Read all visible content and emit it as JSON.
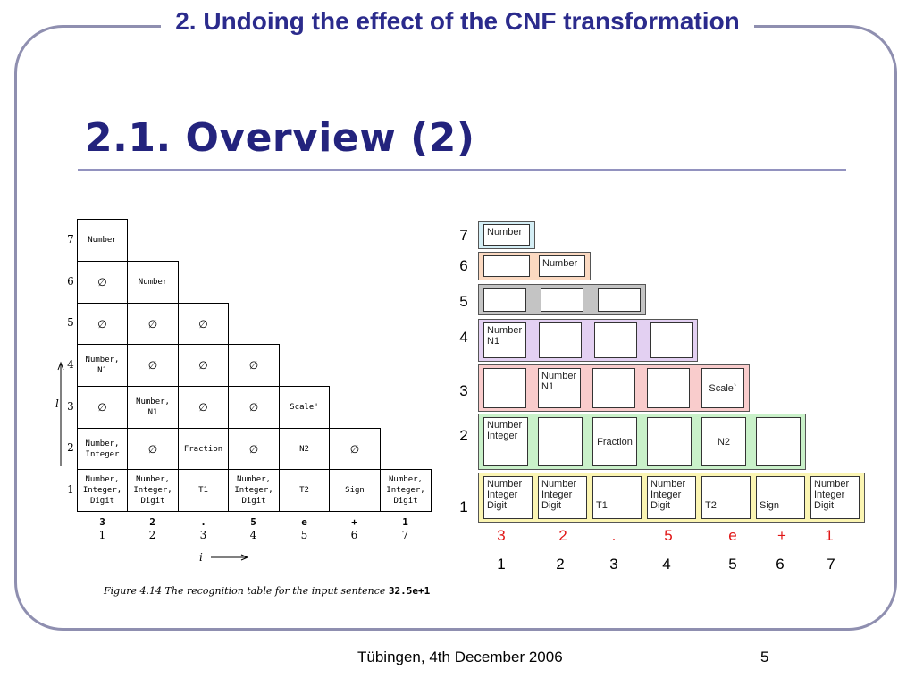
{
  "slide": {
    "title": "2. Undoing the effect of the CNF transformation",
    "heading": "2.1. Overview (2)",
    "footer": "Tübingen, 4th December 2006",
    "page_number": "5"
  },
  "table": {
    "row_labels": [
      "7",
      "6",
      "5",
      "4",
      "3",
      "2",
      "1"
    ],
    "rows": [
      [
        "Number"
      ],
      [
        "∅",
        "Number"
      ],
      [
        "∅",
        "∅",
        "∅"
      ],
      [
        "Number,\nN1",
        "∅",
        "∅",
        "∅"
      ],
      [
        "∅",
        "Number,\nN1",
        "∅",
        "∅",
        "Scale'"
      ],
      [
        "Number,\nInteger",
        "∅",
        "Fraction",
        "∅",
        "N2",
        "∅"
      ],
      [
        "Number,\nInteger,\nDigit",
        "Number,\nInteger,\nDigit",
        "T1",
        "Number,\nInteger,\nDigit",
        "T2",
        "Sign",
        "Number,\nInteger,\nDigit"
      ]
    ],
    "input_chars": [
      "3",
      "2",
      ".",
      "5",
      "e",
      "+",
      "1"
    ],
    "column_indices": [
      "1",
      "2",
      "3",
      "4",
      "5",
      "6",
      "7"
    ],
    "axis_i": "i",
    "axis_l": "l",
    "caption_text": "Figure 4.14  The recognition table for the input sentence ",
    "caption_code": "32.5e+1"
  },
  "diagram": {
    "row_labels": [
      "7",
      "6",
      "5",
      "4",
      "3",
      "2",
      "1"
    ],
    "band_colors": [
      "#d4eef5",
      "#fbd9c1",
      "#c4c4c4",
      "#e3d0f2",
      "#f9cccc",
      "#c9f1c9",
      "#fbf5b2"
    ],
    "rows": [
      [
        [
          "Number"
        ]
      ],
      [
        [],
        [
          "Number"
        ]
      ],
      [
        [],
        [],
        []
      ],
      [
        [
          "Number",
          "N1"
        ],
        [],
        [],
        []
      ],
      [
        [],
        [
          "Number",
          "N1"
        ],
        [],
        [],
        [
          "Scale`"
        ]
      ],
      [
        [
          "Number",
          "Integer"
        ],
        [],
        [
          "Fraction"
        ],
        [],
        [
          "N2"
        ],
        []
      ],
      [
        [
          "Number",
          "Integer",
          "Digit"
        ],
        [
          "Number",
          "Integer",
          "Digit"
        ],
        [
          "T1"
        ],
        [
          "Number",
          "Integer",
          "Digit"
        ],
        [
          "T2"
        ],
        [
          "Sign"
        ],
        [
          "Number",
          "Integer",
          "Digit"
        ]
      ]
    ],
    "input_chars": [
      "3",
      "2",
      ".",
      "5",
      "e",
      "+",
      "1"
    ],
    "positions": [
      "1",
      "2",
      "3",
      "4",
      "5",
      "6",
      "7"
    ]
  }
}
